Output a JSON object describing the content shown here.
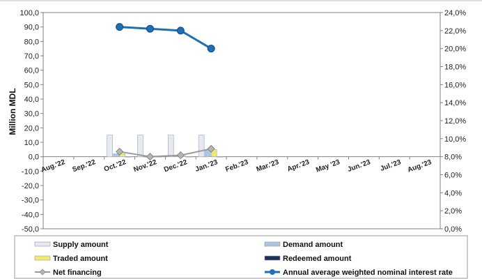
{
  "chart_data": {
    "type": "bar",
    "categories": [
      "Aug.'22",
      "Sep.'22",
      "Oct.'22",
      "Nov.'22",
      "Dec.'22",
      "Jan.'23",
      "Feb.'23",
      "Mar.'23",
      "Apr.'23",
      "May '23",
      "Jun.'23",
      "Jul.'23",
      "Aug.'23"
    ],
    "ylabel": "Million MDL",
    "ylim": [
      -50,
      100
    ],
    "yticks": [
      "100,0",
      "90,0",
      "80,0",
      "70,0",
      "60,0",
      "50,0",
      "40,0",
      "30,0",
      "20,0",
      "10,0",
      "0,0",
      "-10,0",
      "-20,0",
      "-30,0",
      "-40,0",
      "-50,0"
    ],
    "y2lim": [
      0,
      24
    ],
    "y2ticks": [
      "24,0%",
      "22,0%",
      "20,0%",
      "18,0%",
      "16,0%",
      "14,0%",
      "12,0%",
      "10,0%",
      "8,0%",
      "6,0%",
      "4,0%",
      "2,0%",
      "0,0%"
    ],
    "legend_position": "bottom",
    "series": [
      {
        "name": "Supply amount",
        "kind": "bar",
        "axis": "left",
        "color": "#e6e9f0",
        "values": [
          null,
          null,
          15.0,
          15.0,
          15.0,
          15.0,
          null,
          null,
          null,
          null,
          null,
          null,
          null
        ]
      },
      {
        "name": "Demand amount",
        "kind": "bar",
        "axis": "left",
        "color": "#a9c6e3",
        "values": [
          null,
          null,
          2.0,
          0.0,
          0.5,
          5.0,
          null,
          null,
          null,
          null,
          null,
          null,
          null
        ]
      },
      {
        "name": "Traded amount",
        "kind": "bar",
        "axis": "left",
        "color": "#f1ea6a",
        "values": [
          null,
          null,
          2.0,
          0.0,
          0.5,
          5.0,
          null,
          null,
          null,
          null,
          null,
          null,
          null
        ]
      },
      {
        "name": "Redeemed amount",
        "kind": "bar",
        "axis": "left",
        "color": "#1f2f5a",
        "values": [
          null,
          null,
          0.0,
          0.0,
          0.0,
          0.0,
          null,
          null,
          null,
          null,
          null,
          null,
          null
        ]
      },
      {
        "name": "Net financing",
        "kind": "line",
        "axis": "left",
        "color": "#9a9a9a",
        "marker": "diamond",
        "values": [
          null,
          null,
          3.5,
          0.0,
          1.0,
          5.5,
          null,
          null,
          null,
          null,
          null,
          null,
          null
        ]
      },
      {
        "name": "Annual average weighted nominal interest rate",
        "kind": "line",
        "axis": "right",
        "color": "#1f6fb4",
        "marker": "circle",
        "values": [
          null,
          null,
          22.4,
          22.2,
          22.0,
          20.0,
          null,
          null,
          null,
          null,
          null,
          null,
          null
        ]
      }
    ]
  }
}
